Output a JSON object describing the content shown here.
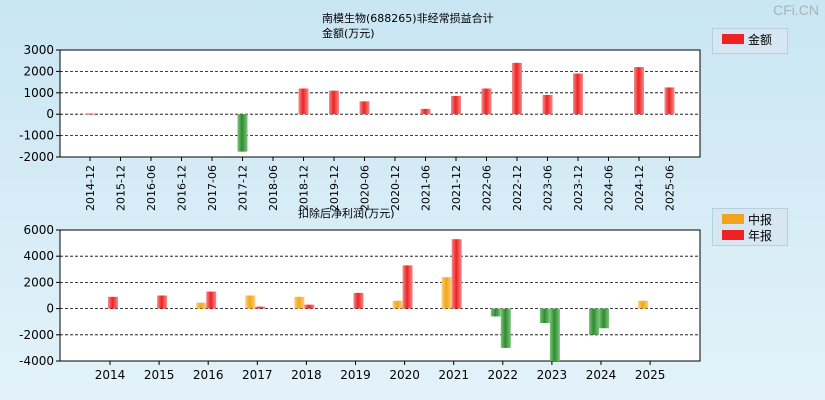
{
  "brand": "CFi.CN",
  "colors": {
    "red": "#ee2222",
    "green": "#2e8b2e",
    "orange": "#f2a51c",
    "plot_bg": "#ffffff"
  },
  "chart_data": [
    {
      "type": "bar",
      "title_line1": "南模生物(688265)非经常损益合计",
      "title_line2": "金额(万元)",
      "legend": [
        "金额"
      ],
      "series_colors": [
        "red"
      ],
      "categories": [
        "2014-12",
        "2015-12",
        "2016-06",
        "2016-12",
        "2017-06",
        "2017-12",
        "2018-06",
        "2018-12",
        "2019-12",
        "2020-06",
        "2020-12",
        "2021-06",
        "2021-12",
        "2022-06",
        "2022-12",
        "2023-06",
        "2023-12",
        "2024-06",
        "2024-12",
        "2025-06"
      ],
      "values": [
        30,
        null,
        null,
        null,
        null,
        -1750,
        null,
        1200,
        1100,
        600,
        null,
        250,
        850,
        1200,
        2400,
        900,
        1900,
        null,
        2200,
        1250
      ],
      "ylim": [
        -2000,
        3000
      ],
      "yticks": [
        -2000,
        -1000,
        0,
        1000,
        2000,
        3000
      ],
      "ytick_labels": [
        "-2000",
        "-1000",
        "0",
        "1000",
        "2000",
        "3000"
      ]
    },
    {
      "type": "bar",
      "title": "扣除后净利润(万元)",
      "legend": [
        "中报",
        "年报"
      ],
      "categories": [
        "2014",
        "2015",
        "2016",
        "2017",
        "2018",
        "2019",
        "2020",
        "2021",
        "2022",
        "2023",
        "2024",
        "2025"
      ],
      "series": [
        {
          "name": "中报",
          "values": [
            null,
            null,
            450,
            1000,
            900,
            null,
            600,
            2400,
            -600,
            -1100,
            -2000,
            600
          ]
        },
        {
          "name": "年报",
          "values": [
            900,
            1000,
            1300,
            150,
            300,
            1200,
            3300,
            5300,
            -3000,
            -4000,
            -1500,
            null
          ]
        }
      ],
      "ylim": [
        -4000,
        6000
      ],
      "yticks": [
        -4000,
        -2000,
        0,
        2000,
        4000,
        6000
      ],
      "ytick_labels": [
        "-4000",
        "-2000",
        "0",
        "2000",
        "4000",
        "6000"
      ]
    }
  ]
}
